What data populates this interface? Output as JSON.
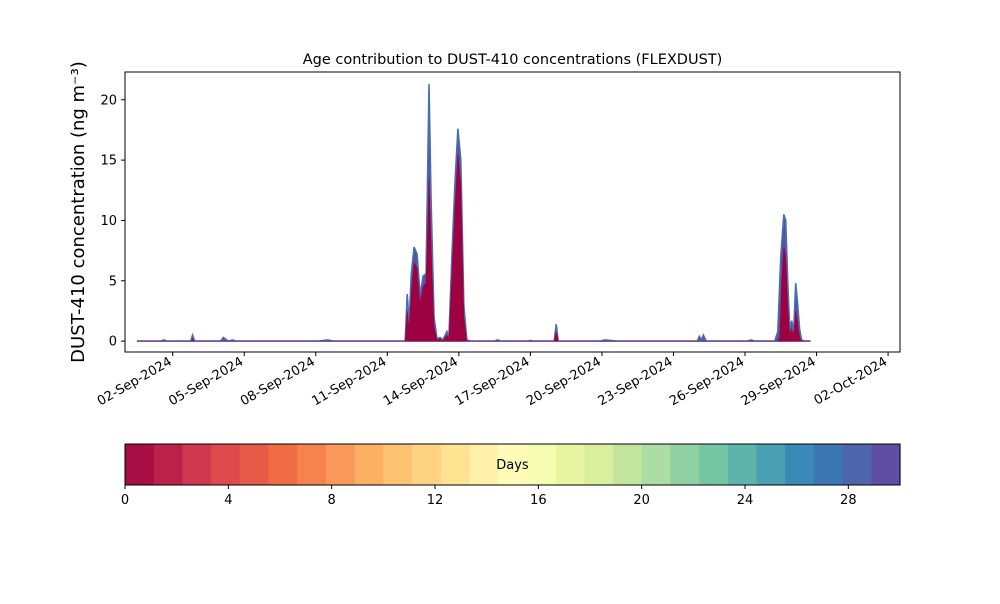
{
  "chart_data": {
    "type": "area",
    "title": "Age contribution to DUST-410 concentrations (FLEXDUST)",
    "ylabel": "DUST-410 concentration (ng m⁻³)",
    "xlabel": "",
    "xlim": [
      "2024-08-31T00:00",
      "2024-10-02T12:00"
    ],
    "ylim": [
      -0.9,
      22.3
    ],
    "y_ticks": [
      0,
      5,
      10,
      15,
      20
    ],
    "x_ticks": [
      {
        "date": "2024-09-02",
        "label": "02-Sep-2024"
      },
      {
        "date": "2024-09-05",
        "label": "05-Sep-2024"
      },
      {
        "date": "2024-09-08",
        "label": "08-Sep-2024"
      },
      {
        "date": "2024-09-11",
        "label": "11-Sep-2024"
      },
      {
        "date": "2024-09-14",
        "label": "14-Sep-2024"
      },
      {
        "date": "2024-09-17",
        "label": "17-Sep-2024"
      },
      {
        "date": "2024-09-20",
        "label": "20-Sep-2024"
      },
      {
        "date": "2024-09-23",
        "label": "23-Sep-2024"
      },
      {
        "date": "2024-09-26",
        "label": "26-Sep-2024"
      },
      {
        "date": "2024-09-29",
        "label": "29-Sep-2024"
      },
      {
        "date": "2024-10-02",
        "label": "02-Oct-2024"
      }
    ],
    "series": [
      {
        "color": "#5a4fa2",
        "points": [
          [
            "2024-08-31T12:00",
            0
          ],
          [
            "2024-09-01T12:00",
            0
          ],
          [
            "2024-09-01T15:00",
            0.1
          ],
          [
            "2024-09-01T18:00",
            0
          ],
          [
            "2024-09-02T18:00",
            0
          ],
          [
            "2024-09-02T20:00",
            0.5
          ],
          [
            "2024-09-02T22:00",
            0
          ],
          [
            "2024-09-04T00:00",
            0
          ],
          [
            "2024-09-04T03:00",
            0.3
          ],
          [
            "2024-09-04T08:00",
            0
          ],
          [
            "2024-09-04T12:00",
            0.1
          ],
          [
            "2024-09-04T16:00",
            0
          ],
          [
            "2024-09-07T12:00",
            0
          ],
          [
            "2024-09-08T03:00",
            0
          ],
          [
            "2024-09-08T12:00",
            0.1
          ],
          [
            "2024-09-08T18:00",
            0
          ],
          [
            "2024-09-11T00:00",
            0
          ],
          [
            "2024-09-11T18:00",
            0
          ],
          [
            "2024-09-11T20:00",
            3.9
          ],
          [
            "2024-09-11T22:00",
            1.5
          ],
          [
            "2024-09-12T00:00",
            5.5
          ],
          [
            "2024-09-12T03:00",
            7.8
          ],
          [
            "2024-09-12T06:00",
            7.2
          ],
          [
            "2024-09-12T09:00",
            3.8
          ],
          [
            "2024-09-12T12:00",
            5.4
          ],
          [
            "2024-09-12T15:00",
            5.6
          ],
          [
            "2024-09-12T18:00",
            21.3
          ],
          [
            "2024-09-12T20:00",
            12.0
          ],
          [
            "2024-09-12T23:00",
            2.0
          ],
          [
            "2024-09-13T02:00",
            0.2
          ],
          [
            "2024-09-13T05:00",
            0.3
          ],
          [
            "2024-09-13T08:00",
            0.1
          ],
          [
            "2024-09-13T12:00",
            0.8
          ],
          [
            "2024-09-13T14:00",
            0.3
          ],
          [
            "2024-09-13T17:00",
            7.0
          ],
          [
            "2024-09-13T20:00",
            13.0
          ],
          [
            "2024-09-13T23:00",
            17.6
          ],
          [
            "2024-09-14T02:00",
            15.0
          ],
          [
            "2024-09-14T05:00",
            3.0
          ],
          [
            "2024-09-14T08:00",
            0.1
          ],
          [
            "2024-09-14T12:00",
            0
          ],
          [
            "2024-09-15T12:00",
            0
          ],
          [
            "2024-09-15T15:00",
            0.1
          ],
          [
            "2024-09-15T18:00",
            0
          ],
          [
            "2024-09-16T21:00",
            0
          ],
          [
            "2024-09-17T00:00",
            0.05
          ],
          [
            "2024-09-17T03:00",
            0
          ],
          [
            "2024-09-18T00:00",
            0
          ],
          [
            "2024-09-18T02:00",
            1.4
          ],
          [
            "2024-09-18T04:00",
            0
          ],
          [
            "2024-09-19T22:00",
            0
          ],
          [
            "2024-09-20T03:00",
            0.1
          ],
          [
            "2024-09-20T10:00",
            0.05
          ],
          [
            "2024-09-20T14:00",
            0
          ],
          [
            "2024-09-24T00:00",
            0
          ],
          [
            "2024-09-24T02:00",
            0.4
          ],
          [
            "2024-09-24T04:00",
            0.1
          ],
          [
            "2024-09-24T06:00",
            0.5
          ],
          [
            "2024-09-24T09:00",
            0
          ],
          [
            "2024-09-26T02:00",
            0
          ],
          [
            "2024-09-26T06:00",
            0.1
          ],
          [
            "2024-09-26T10:00",
            0
          ],
          [
            "2024-09-27T06:00",
            0
          ],
          [
            "2024-09-27T09:00",
            0.8
          ],
          [
            "2024-09-27T12:00",
            7.0
          ],
          [
            "2024-09-27T15:00",
            10.5
          ],
          [
            "2024-09-27T17:00",
            10.0
          ],
          [
            "2024-09-27T19:00",
            5.0
          ],
          [
            "2024-09-27T21:00",
            1.0
          ],
          [
            "2024-09-27T23:00",
            1.7
          ],
          [
            "2024-09-28T01:00",
            0.8
          ],
          [
            "2024-09-28T03:00",
            4.8
          ],
          [
            "2024-09-28T05:00",
            3.0
          ],
          [
            "2024-09-28T07:00",
            1.0
          ],
          [
            "2024-09-28T09:00",
            0.1
          ],
          [
            "2024-09-28T12:00",
            0
          ],
          [
            "2024-09-28T18:00",
            0
          ]
        ]
      },
      {
        "color": "#9e0142",
        "points": [
          [
            "2024-08-31T12:00",
            0
          ],
          [
            "2024-09-02T19:00",
            0
          ],
          [
            "2024-09-02T20:00",
            0.2
          ],
          [
            "2024-09-02T21:00",
            0
          ],
          [
            "2024-09-11T18:00",
            0
          ],
          [
            "2024-09-11T20:00",
            2.5
          ],
          [
            "2024-09-11T22:00",
            1.0
          ],
          [
            "2024-09-12T00:00",
            4.0
          ],
          [
            "2024-09-12T03:00",
            6.5
          ],
          [
            "2024-09-12T06:00",
            6.0
          ],
          [
            "2024-09-12T09:00",
            3.0
          ],
          [
            "2024-09-12T12:00",
            4.5
          ],
          [
            "2024-09-12T15:00",
            4.8
          ],
          [
            "2024-09-12T18:00",
            13.5
          ],
          [
            "2024-09-12T20:00",
            8.0
          ],
          [
            "2024-09-12T23:00",
            1.2
          ],
          [
            "2024-09-13T02:00",
            0.1
          ],
          [
            "2024-09-13T05:00",
            0.2
          ],
          [
            "2024-09-13T08:00",
            0
          ],
          [
            "2024-09-13T12:00",
            0.5
          ],
          [
            "2024-09-13T14:00",
            0.2
          ],
          [
            "2024-09-13T17:00",
            5.5
          ],
          [
            "2024-09-13T20:00",
            11.0
          ],
          [
            "2024-09-13T23:00",
            15.5
          ],
          [
            "2024-09-14T02:00",
            13.0
          ],
          [
            "2024-09-14T05:00",
            2.0
          ],
          [
            "2024-09-14T08:00",
            0
          ],
          [
            "2024-09-18T00:00",
            0
          ],
          [
            "2024-09-18T02:00",
            0.8
          ],
          [
            "2024-09-18T04:00",
            0
          ],
          [
            "2024-09-27T09:00",
            0
          ],
          [
            "2024-09-27T11:00",
            0.3
          ],
          [
            "2024-09-27T13:00",
            5.0
          ],
          [
            "2024-09-27T15:00",
            7.8
          ],
          [
            "2024-09-27T17:00",
            7.0
          ],
          [
            "2024-09-27T19:00",
            3.0
          ],
          [
            "2024-09-27T21:00",
            0.5
          ],
          [
            "2024-09-27T23:00",
            1.0
          ],
          [
            "2024-09-28T01:00",
            0.5
          ],
          [
            "2024-09-28T03:00",
            2.5
          ],
          [
            "2024-09-28T05:00",
            1.5
          ],
          [
            "2024-09-28T07:00",
            0.3
          ],
          [
            "2024-09-28T09:00",
            0
          ],
          [
            "2024-09-28T18:00",
            0
          ]
        ]
      }
    ],
    "colorbar": {
      "label": "Days",
      "range": [
        0,
        30
      ],
      "ticks": [
        0,
        4,
        8,
        12,
        16,
        20,
        24,
        28
      ],
      "colors": [
        "#a60e44",
        "#bc2249",
        "#d0384e",
        "#dd4a4c",
        "#e75a47",
        "#f06c44",
        "#f6834f",
        "#f99a5a",
        "#fdb063",
        "#fdc372",
        "#fed382",
        "#fee393",
        "#fff1a9",
        "#fffbb8",
        "#f7fcb3",
        "#e9f6a1",
        "#d9ef9b",
        "#c3e59e",
        "#abdda4",
        "#90d1a4",
        "#75c6a5",
        "#5eb3aa",
        "#4a9fb2",
        "#3a8ab8",
        "#3c76b3",
        "#4e65ab",
        "#5e4fa2"
      ]
    }
  }
}
